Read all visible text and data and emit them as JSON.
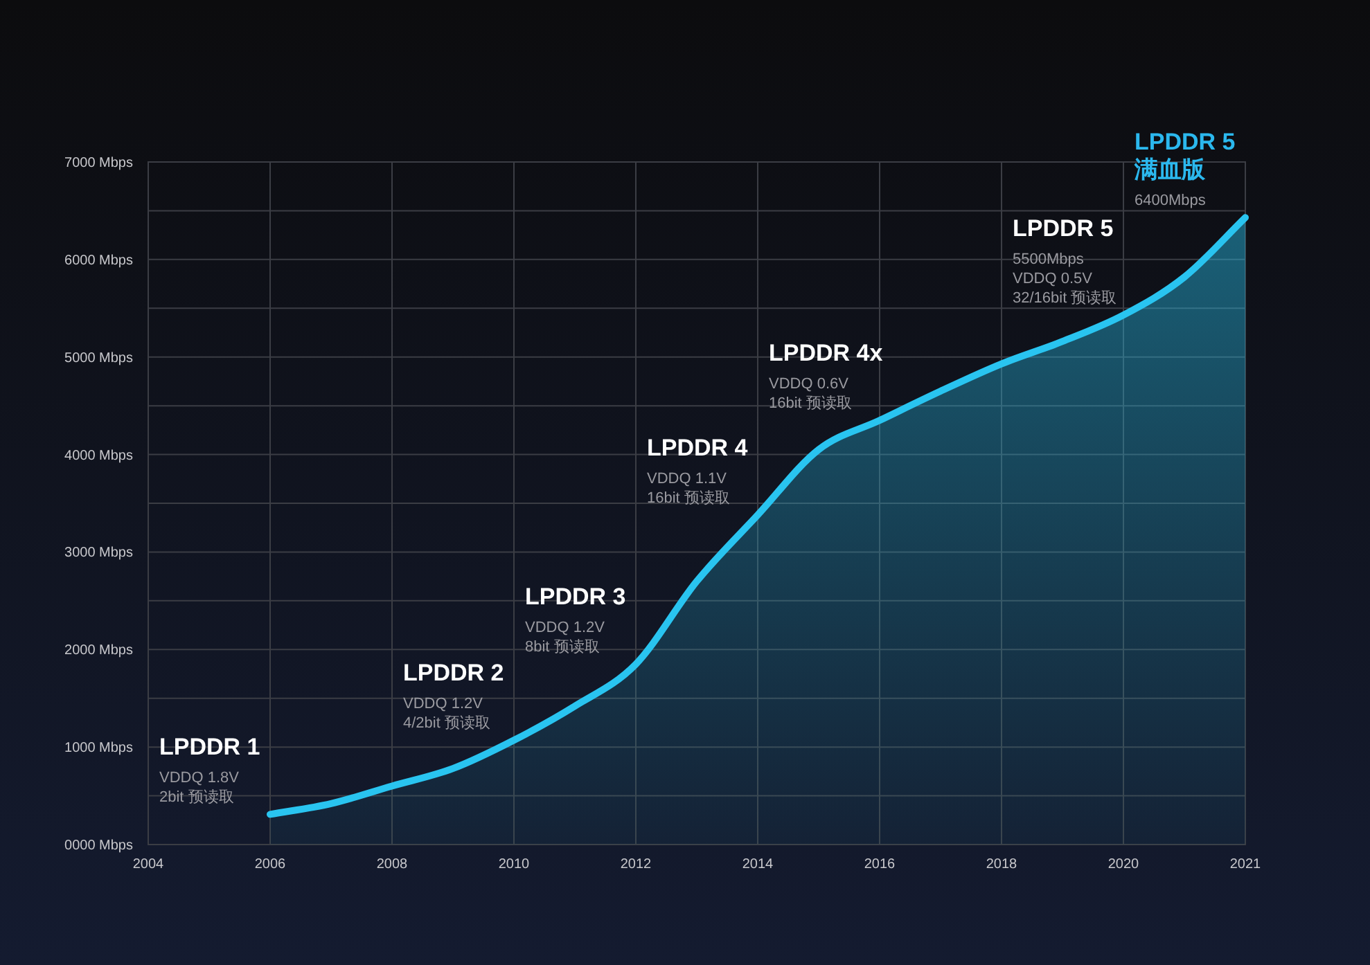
{
  "chart_data": {
    "type": "area",
    "categories": [
      "2004",
      null,
      "2006",
      null,
      "2008",
      null,
      "2010",
      null,
      "2012",
      null,
      "2014",
      null,
      "2016",
      null,
      "2018",
      null,
      "2020",
      null,
      "2021"
    ],
    "series": [
      {
        "color": "#29c4f0",
        "values": [
          null,
          null,
          310,
          420,
          600,
          780,
          1070,
          1420,
          1850,
          2700,
          3380,
          4050,
          4350,
          4650,
          4930,
          5160,
          5430,
          5820,
          6430
        ]
      }
    ],
    "ylim": [
      0,
      7000
    ],
    "yticks": [
      {
        "value": 0,
        "label": "0000 Mbps"
      },
      {
        "value": 500,
        "label": null
      },
      {
        "value": 1000,
        "label": "1000 Mbps"
      },
      {
        "value": 1500,
        "label": null
      },
      {
        "value": 2000,
        "label": "2000 Mbps"
      },
      {
        "value": 2500,
        "label": null
      },
      {
        "value": 3000,
        "label": "3000 Mbps"
      },
      {
        "value": 3500,
        "label": null
      },
      {
        "value": 4000,
        "label": "4000 Mbps"
      },
      {
        "value": 4500,
        "label": null
      },
      {
        "value": 5000,
        "label": "5000 Mbps"
      },
      {
        "value": 5500,
        "label": null
      },
      {
        "value": 6000,
        "label": "6000 Mbps"
      },
      {
        "value": 6500,
        "label": null
      },
      {
        "value": 7000,
        "label": "7000 Mbps"
      }
    ],
    "grid": true,
    "annotations": [
      {
        "text": "LPDDR 1\nVDDQ 1.8V\n2bit 预读取",
        "x": "2006",
        "y": 310
      },
      {
        "text": "LPDDR 2\nVDDQ 1.2V\n4/2bit 预读取",
        "x": "2010",
        "y": 1070
      },
      {
        "text": "LPDDR 3\nVDDQ 1.2V\n8bit 预读取",
        "x": "2012",
        "y": 1850
      },
      {
        "text": "LPDDR 4\nVDDQ 1.1V\n16bit 预读取",
        "x": "2014",
        "y": 3380
      },
      {
        "text": "LPDDR 4x\nVDDQ 0.6V\n16bit 预读取",
        "x": "2016",
        "y": 4350
      },
      {
        "text": "LPDDR 5\n5500Mbps\nVDDQ 0.5V\n32/16bit 预读取",
        "x": "2020",
        "y": 5430
      },
      {
        "text": "LPDDR 5\n满血版\n6400Mbps",
        "x": "2021",
        "y": 6430
      }
    ]
  }
}
